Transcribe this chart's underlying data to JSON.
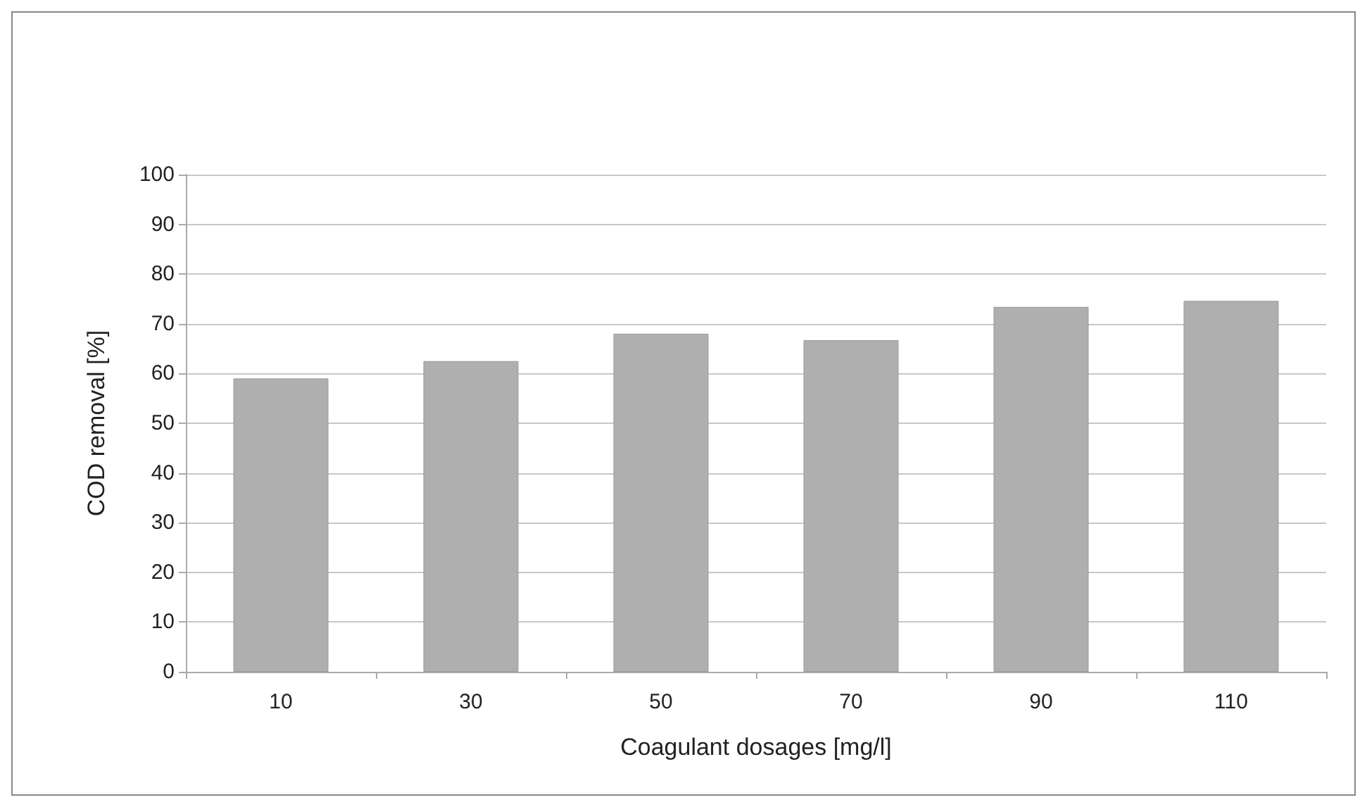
{
  "chart_data": {
    "type": "bar",
    "xlabel": "Coagulant dosages [mg/l]",
    "ylabel": "COD removal [%]",
    "categories": [
      "10",
      "30",
      "50",
      "70",
      "90",
      "110"
    ],
    "values": [
      59,
      62.5,
      68,
      66.7,
      73.4,
      74.6
    ],
    "color": "#afafaf",
    "ylim": [
      0,
      100
    ],
    "yticks": [
      0,
      10,
      20,
      30,
      40,
      50,
      60,
      70,
      80,
      90,
      100
    ],
    "grid": "y"
  }
}
